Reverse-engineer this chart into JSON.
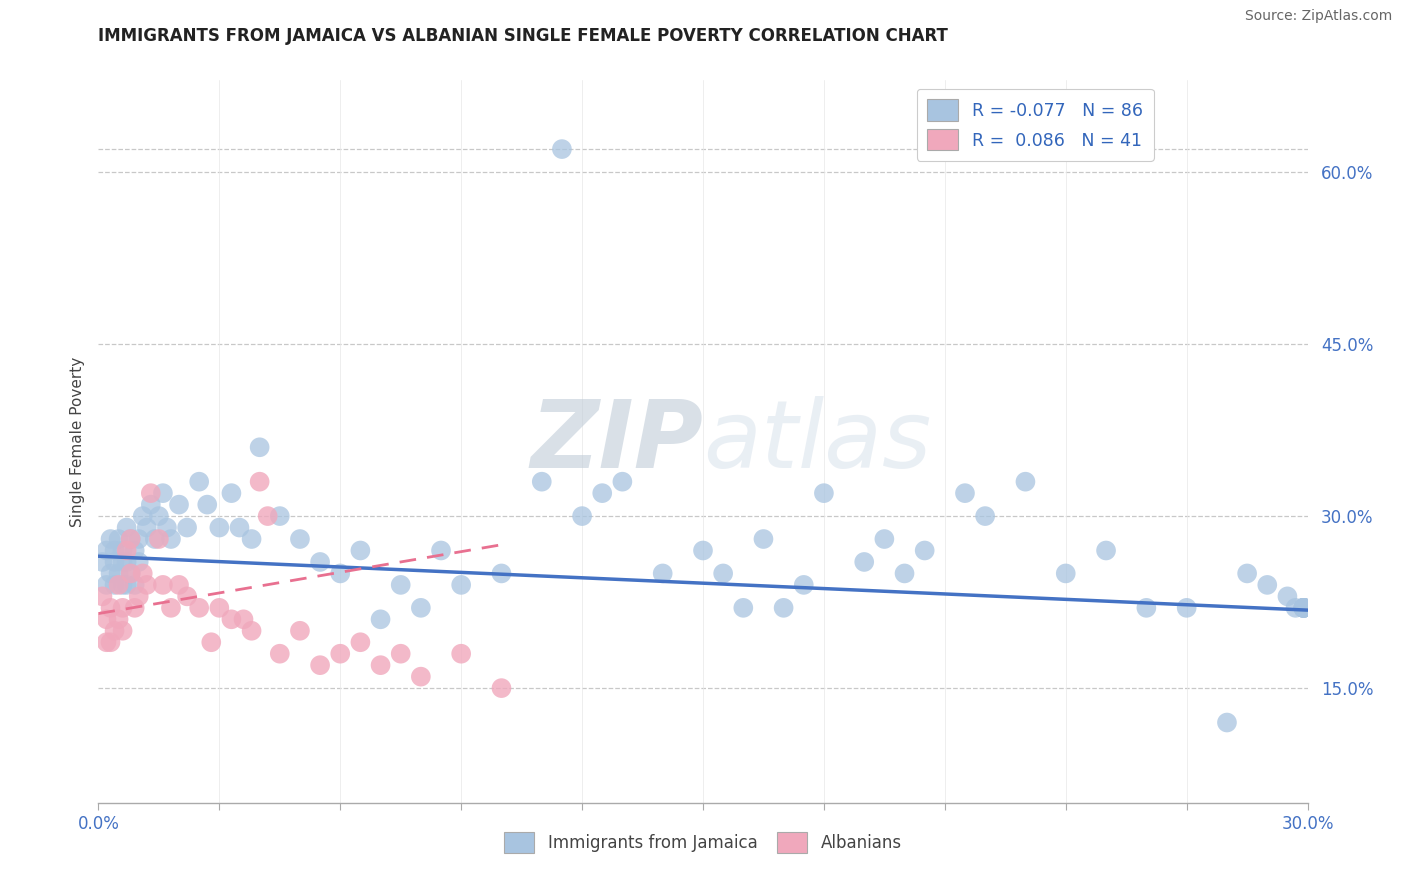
{
  "title": "IMMIGRANTS FROM JAMAICA VS ALBANIAN SINGLE FEMALE POVERTY CORRELATION CHART",
  "source": "Source: ZipAtlas.com",
  "ylabel": "Single Female Poverty",
  "y_tick_labels": [
    "15.0%",
    "30.0%",
    "45.0%",
    "60.0%"
  ],
  "y_tick_values": [
    0.15,
    0.3,
    0.45,
    0.6
  ],
  "x_range": [
    0.0,
    0.3
  ],
  "y_range": [
    0.05,
    0.68
  ],
  "legend_bottom": [
    "Immigrants from Jamaica",
    "Albanians"
  ],
  "blue_color": "#a8c4e0",
  "pink_color": "#f0a8bc",
  "blue_line_color": "#4472c4",
  "pink_line_color": "#e87090",
  "watermark": "ZIPatlas",
  "jamaica_x": [
    0.001,
    0.002,
    0.002,
    0.003,
    0.003,
    0.004,
    0.004,
    0.004,
    0.005,
    0.005,
    0.006,
    0.006,
    0.006,
    0.007,
    0.007,
    0.007,
    0.008,
    0.008,
    0.009,
    0.009,
    0.01,
    0.01,
    0.011,
    0.012,
    0.013,
    0.014,
    0.015,
    0.016,
    0.017,
    0.018,
    0.02,
    0.022,
    0.025,
    0.027,
    0.03,
    0.033,
    0.035,
    0.038,
    0.04,
    0.045,
    0.05,
    0.055,
    0.06,
    0.065,
    0.07,
    0.075,
    0.08,
    0.085,
    0.09,
    0.1,
    0.11,
    0.115,
    0.12,
    0.125,
    0.13,
    0.14,
    0.15,
    0.155,
    0.16,
    0.165,
    0.17,
    0.175,
    0.18,
    0.19,
    0.195,
    0.2,
    0.205,
    0.215,
    0.22,
    0.23,
    0.24,
    0.25,
    0.26,
    0.27,
    0.28,
    0.285,
    0.29,
    0.295,
    0.297,
    0.299,
    0.299,
    0.299,
    0.299,
    0.299,
    0.299,
    0.299
  ],
  "jamaica_y": [
    0.26,
    0.27,
    0.24,
    0.25,
    0.28,
    0.26,
    0.27,
    0.24,
    0.28,
    0.25,
    0.27,
    0.26,
    0.24,
    0.29,
    0.26,
    0.24,
    0.28,
    0.25,
    0.27,
    0.24,
    0.28,
    0.26,
    0.3,
    0.29,
    0.31,
    0.28,
    0.3,
    0.32,
    0.29,
    0.28,
    0.31,
    0.29,
    0.33,
    0.31,
    0.29,
    0.32,
    0.29,
    0.28,
    0.36,
    0.3,
    0.28,
    0.26,
    0.25,
    0.27,
    0.21,
    0.24,
    0.22,
    0.27,
    0.24,
    0.25,
    0.33,
    0.62,
    0.3,
    0.32,
    0.33,
    0.25,
    0.27,
    0.25,
    0.22,
    0.28,
    0.22,
    0.24,
    0.32,
    0.26,
    0.28,
    0.25,
    0.27,
    0.32,
    0.3,
    0.33,
    0.25,
    0.27,
    0.22,
    0.22,
    0.12,
    0.25,
    0.24,
    0.23,
    0.22,
    0.22,
    0.22,
    0.22,
    0.22,
    0.22,
    0.22,
    0.22
  ],
  "albanian_x": [
    0.001,
    0.002,
    0.002,
    0.003,
    0.003,
    0.004,
    0.005,
    0.005,
    0.006,
    0.006,
    0.007,
    0.008,
    0.008,
    0.009,
    0.01,
    0.011,
    0.012,
    0.013,
    0.015,
    0.016,
    0.018,
    0.02,
    0.022,
    0.025,
    0.028,
    0.03,
    0.033,
    0.036,
    0.038,
    0.04,
    0.042,
    0.045,
    0.05,
    0.055,
    0.06,
    0.065,
    0.07,
    0.075,
    0.08,
    0.09,
    0.1
  ],
  "albanian_y": [
    0.23,
    0.21,
    0.19,
    0.22,
    0.19,
    0.2,
    0.24,
    0.21,
    0.22,
    0.2,
    0.27,
    0.28,
    0.25,
    0.22,
    0.23,
    0.25,
    0.24,
    0.32,
    0.28,
    0.24,
    0.22,
    0.24,
    0.23,
    0.22,
    0.19,
    0.22,
    0.21,
    0.21,
    0.2,
    0.33,
    0.3,
    0.18,
    0.2,
    0.17,
    0.18,
    0.19,
    0.17,
    0.18,
    0.16,
    0.18,
    0.15
  ],
  "jamaica_trend_x": [
    0.0,
    0.3
  ],
  "jamaica_trend_y": [
    0.265,
    0.218
  ],
  "albanian_trend_x": [
    0.0,
    0.1
  ],
  "albanian_trend_y": [
    0.215,
    0.275
  ]
}
